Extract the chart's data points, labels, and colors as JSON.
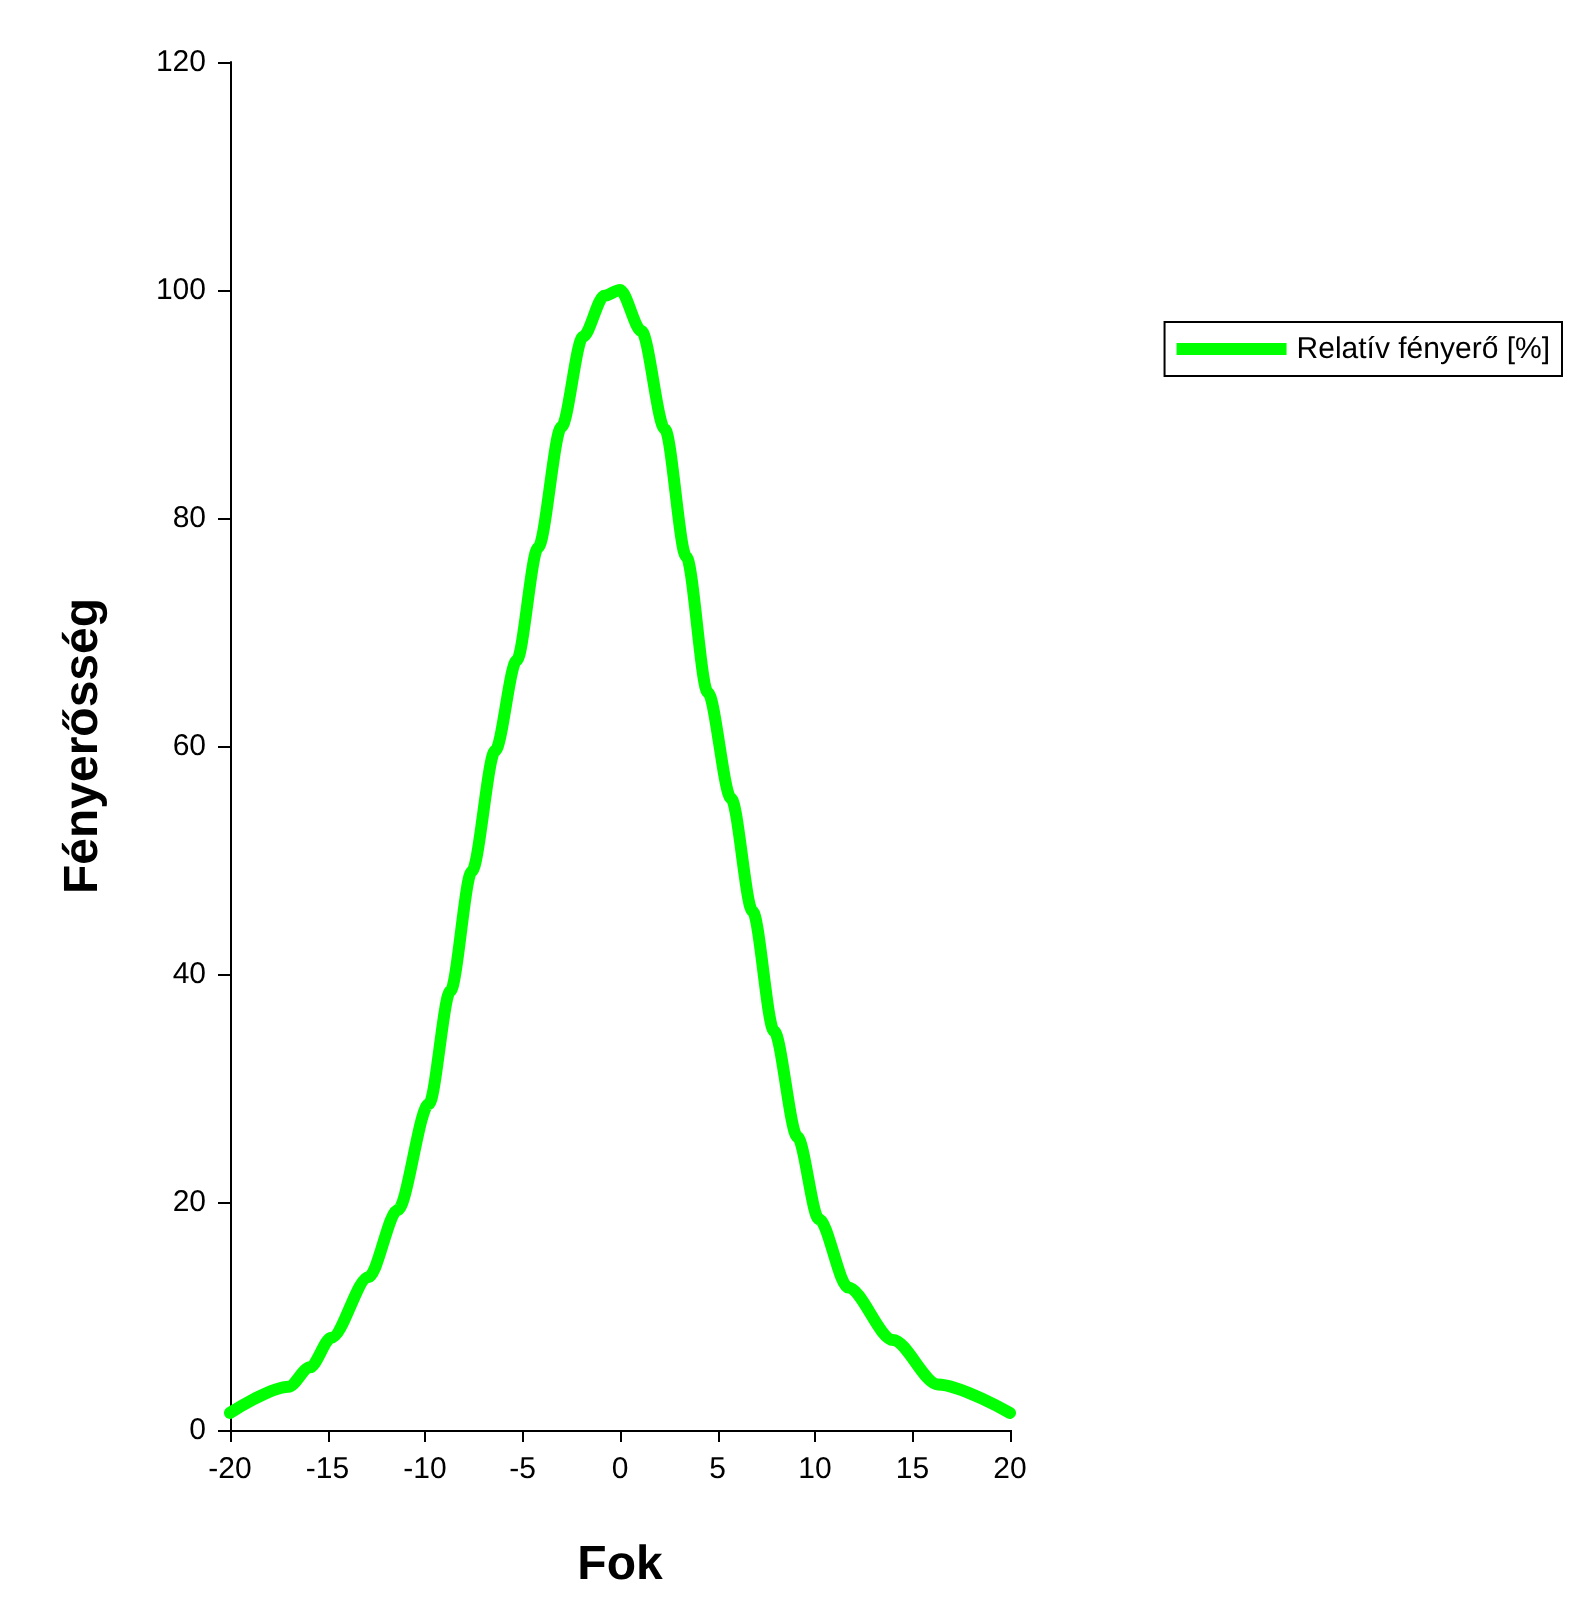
{
  "chart_data": {
    "type": "line",
    "xlabel": "Fok",
    "ylabel": "Fényerősség",
    "x": [
      -20,
      -17,
      -15.9,
      -14.8,
      -12.9,
      -11.4,
      -9.8,
      -8.7,
      -7.6,
      -6.4,
      -5.3,
      -4.2,
      -3.0,
      -1.9,
      -0.8,
      0,
      1.1,
      2.3,
      3.4,
      4.5,
      5.7,
      6.8,
      7.9,
      9.1,
      10.2,
      11.7,
      14.0,
      16.3,
      20
    ],
    "series": [
      {
        "name": "Relatív fényerő [%]",
        "color": "#00ff00",
        "values": [
          1.5,
          3.8,
          5.5,
          8.1,
          13.4,
          19.3,
          28.6,
          38.5,
          49,
          59.6,
          67.5,
          77.4,
          88,
          95.9,
          99.5,
          100,
          96.4,
          87.8,
          76.6,
          64.7,
          55.4,
          45.5,
          35,
          25.7,
          18.5,
          12.5,
          7.9,
          4,
          1.5
        ]
      }
    ],
    "xlim": [
      -20,
      20
    ],
    "xticks": [
      -20,
      -15,
      -10,
      -5,
      0,
      5,
      10,
      15,
      20
    ],
    "ylim": [
      0,
      120
    ],
    "yticks": [
      0,
      20,
      40,
      60,
      80,
      100,
      120
    ],
    "grid": false,
    "legend": "top right",
    "marker": "none",
    "line_style": "solid"
  }
}
